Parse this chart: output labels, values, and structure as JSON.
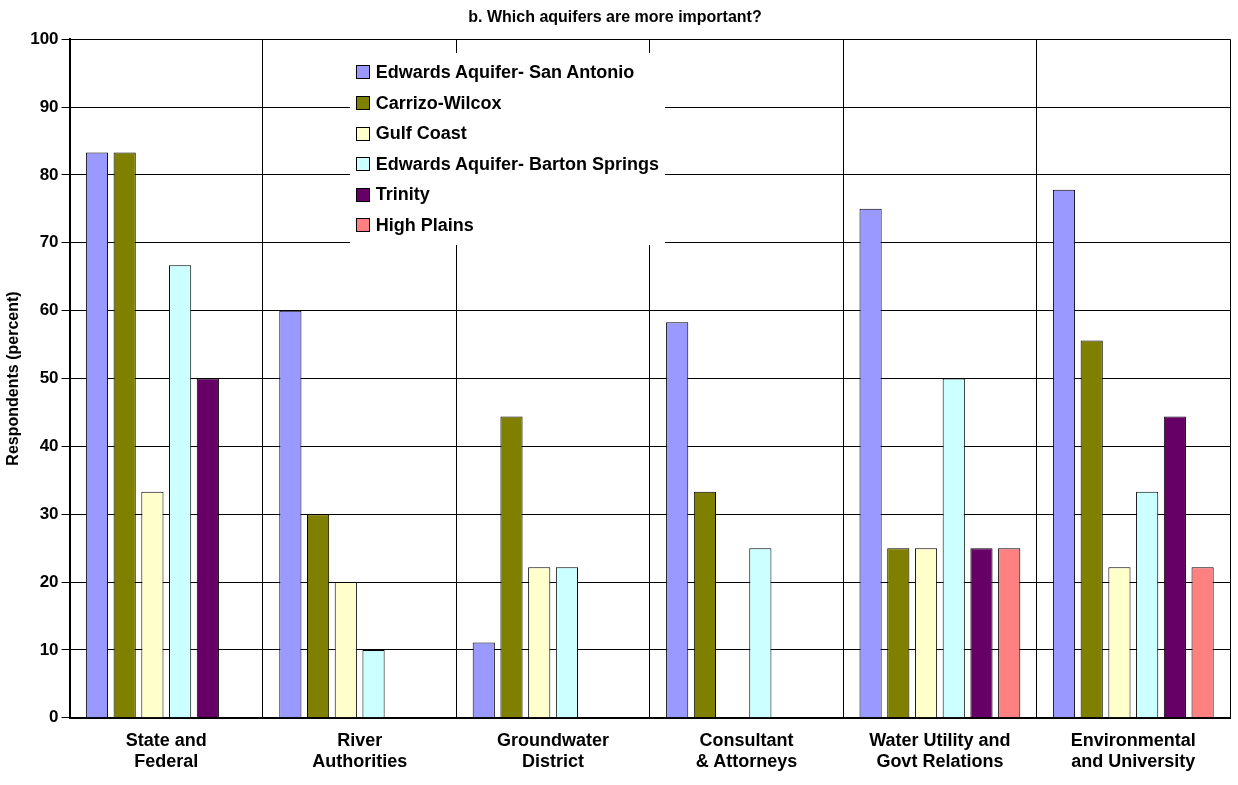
{
  "chart_data": {
    "type": "bar",
    "title": "b. Which aquifers are more important?",
    "ylabel": "Respondents (percent)",
    "categories": [
      "State and Federal",
      "River Authorities",
      "Groundwater District",
      "Consultant & Attorneys",
      "Water Utility and Govt Relations",
      "Environmental and University"
    ],
    "series": [
      {
        "name": "Edwards Aquifer- San Antonio",
        "color": "#9999ff",
        "values": [
          83.3,
          60,
          11.1,
          58.3,
          75,
          77.8
        ]
      },
      {
        "name": "Carrizo-Wilcox",
        "color": "#808000",
        "values": [
          83.3,
          30,
          44.4,
          33.3,
          25,
          55.6
        ]
      },
      {
        "name": "Gulf Coast",
        "color": "#ffffcc",
        "values": [
          33.3,
          20,
          22.2,
          0,
          25,
          22.2
        ]
      },
      {
        "name": "Edwards Aquifer- Barton Springs",
        "color": "#ccffff",
        "values": [
          66.7,
          10,
          22.2,
          25,
          50,
          33.3
        ]
      },
      {
        "name": "Trinity",
        "color": "#660066",
        "values": [
          50,
          0,
          0,
          0,
          25,
          44.4
        ]
      },
      {
        "name": "High Plains",
        "color": "#ff8080",
        "values": [
          0,
          0,
          0,
          0,
          25,
          22.2
        ]
      }
    ],
    "ylim": [
      0,
      100
    ],
    "yticks": [
      0,
      10,
      20,
      30,
      40,
      50,
      60,
      70,
      80,
      90,
      100
    ],
    "grid": true,
    "legend": "top left"
  }
}
